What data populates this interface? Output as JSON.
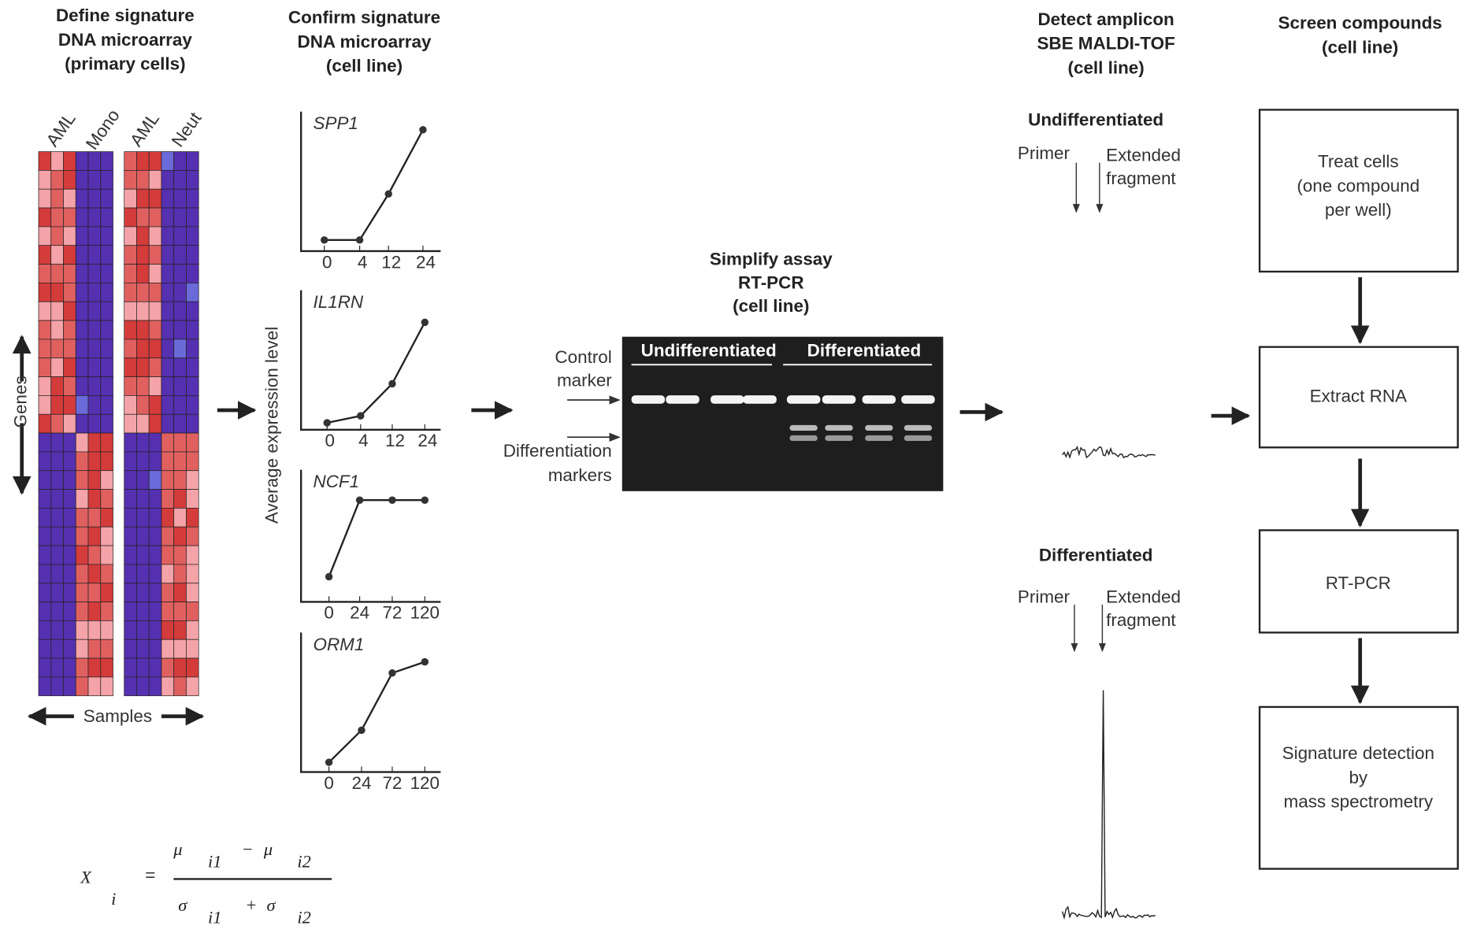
{
  "microarray": {
    "title": [
      "Define signature",
      "DNA microarray",
      "(primary cells)"
    ],
    "columns": [
      "AML",
      "Mono",
      "AML",
      "Neut"
    ],
    "y_label": "Genes",
    "x_label": "Samples"
  },
  "formula": {
    "lhs": "X",
    "lhs_index": "i",
    "equals": "=",
    "numerator": [
      "μ",
      "i1",
      "−",
      "μ",
      "i2"
    ],
    "denominator": [
      "σ",
      "i1",
      "+",
      "σ",
      "i2"
    ]
  },
  "confirm": {
    "title": [
      "Confirm signature",
      "DNA microarray",
      "(cell line)"
    ],
    "y_label": "Average expression level",
    "charts": [
      {
        "name": "SPP1",
        "x": [
          "0",
          "4",
          "12",
          "24"
        ],
        "values": [
          8,
          8,
          41,
          87
        ]
      },
      {
        "name": "IL1RN",
        "x": [
          "0",
          "4",
          "12",
          "24"
        ],
        "values": [
          5,
          10,
          33,
          77
        ]
      },
      {
        "name": "NCF1",
        "x": [
          "0",
          "24",
          "72",
          "120"
        ],
        "values": [
          19,
          77,
          77,
          77
        ]
      },
      {
        "name": "ORM1",
        "x": [
          "0",
          "24",
          "72",
          "120"
        ],
        "values": [
          7,
          30,
          71,
          79
        ]
      }
    ]
  },
  "assay": {
    "title": [
      "Simplify assay",
      "RT-PCR",
      "(cell line)"
    ],
    "lanes": [
      "Undifferentiated",
      "Differentiated"
    ],
    "control": [
      "Control",
      "marker"
    ],
    "differentiation": [
      "Differentiation",
      "markers"
    ]
  },
  "detect": {
    "title": [
      "Detect amplicon",
      "SBE MALDI-TOF",
      "(cell line)"
    ],
    "panels": [
      {
        "label": "Undifferentiated",
        "primer": "Primer",
        "extended": [
          "Extended",
          "fragment"
        ]
      },
      {
        "label": "Differentiated",
        "primer": "Primer",
        "extended": [
          "Extended",
          "fragment"
        ]
      }
    ]
  },
  "screen": {
    "title": [
      "Screen compounds",
      "(cell line)"
    ],
    "steps": [
      [
        "Treat cells",
        "(one compound",
        "per well)"
      ],
      [
        "Extract RNA"
      ],
      [
        "RT-PCR"
      ],
      [
        "Signature detection",
        "by",
        "mass spectrometry"
      ]
    ]
  }
}
